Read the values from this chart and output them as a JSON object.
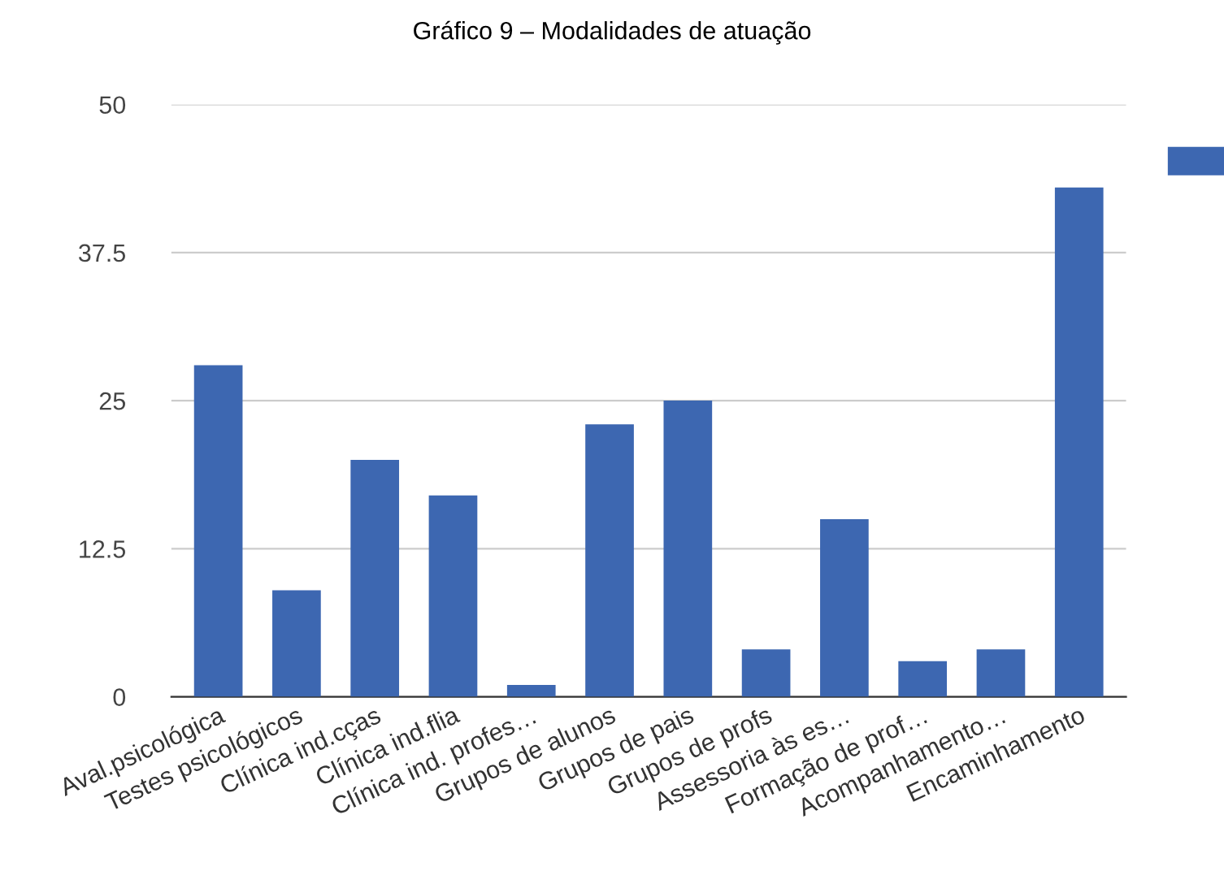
{
  "chart_data": {
    "type": "bar",
    "title": "Gráfico 9 – Modalidades de atuação",
    "categories": [
      "Aval.psicológica",
      "Testes psicológicos",
      "Clínica ind.cças",
      "Clínica ind.flia",
      "Clínica ind. profes…",
      "Grupos de alunos",
      "Grupos de pais",
      "Grupos de profs",
      "Assessoria às es…",
      "Formação de prof…",
      "Acompanhamento…",
      "Encaminhamento"
    ],
    "values": [
      28,
      9,
      20,
      17,
      1,
      23,
      25,
      4,
      15,
      3,
      4,
      43
    ],
    "color": "#3d67b1",
    "ylim": [
      0,
      50
    ],
    "yticks": [
      0,
      12.5,
      25,
      37.5,
      50
    ],
    "grid": "y"
  }
}
